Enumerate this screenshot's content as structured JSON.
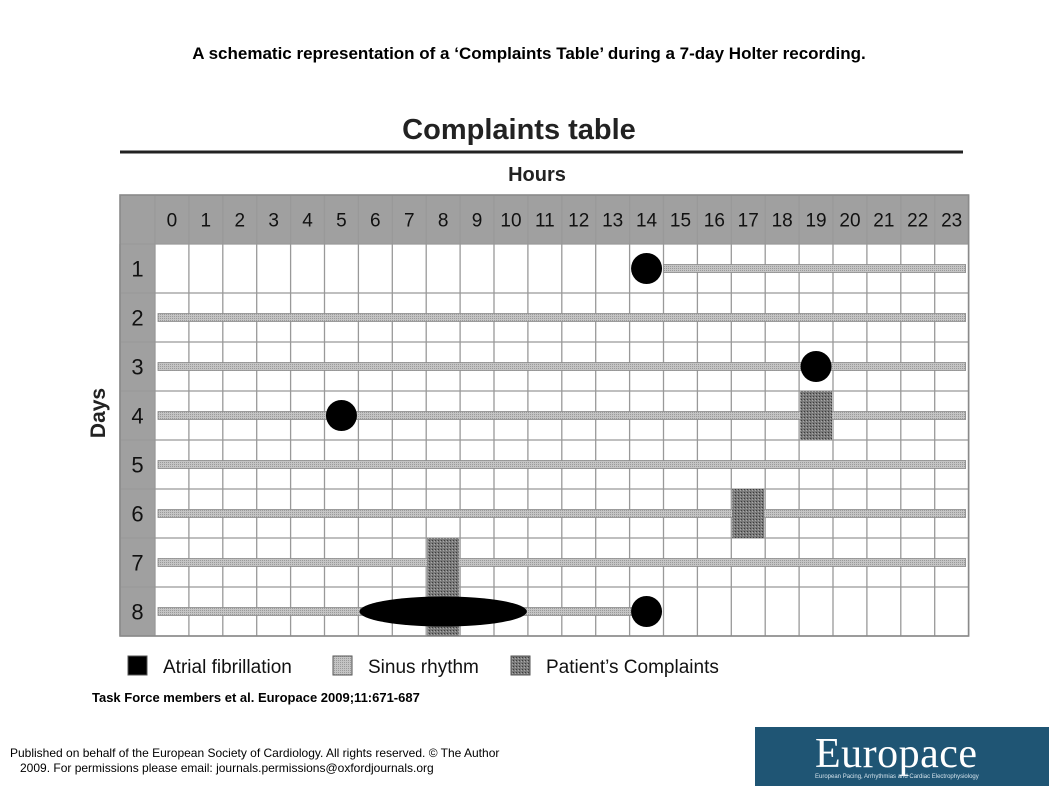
{
  "slide_title": "A schematic representation of a ‘Complaints Table’ during a 7-day Holter recording.",
  "figure": {
    "title": "Complaints table",
    "hours_label": "Hours",
    "days_label": "Days",
    "hours": [
      "0",
      "1",
      "2",
      "3",
      "4",
      "5",
      "6",
      "7",
      "8",
      "9",
      "10",
      "11",
      "12",
      "13",
      "14",
      "15",
      "16",
      "17",
      "18",
      "19",
      "20",
      "21",
      "22",
      "23"
    ],
    "days": [
      "1",
      "2",
      "3",
      "4",
      "5",
      "6",
      "7",
      "8"
    ],
    "legend": [
      {
        "key": "af",
        "label": "Atrial fibrillation"
      },
      {
        "key": "sinus",
        "label": "Sinus rhythm"
      },
      {
        "key": "complaint",
        "label": "Patient’s Complaints"
      }
    ],
    "sinus_rhythm": [
      {
        "day": 1,
        "start": 15,
        "end": 24
      },
      {
        "day": 2,
        "start": 0,
        "end": 24
      },
      {
        "day": 3,
        "start": 0,
        "end": 24
      },
      {
        "day": 4,
        "start": 0,
        "end": 24
      },
      {
        "day": 5,
        "start": 0,
        "end": 24
      },
      {
        "day": 6,
        "start": 0,
        "end": 24
      },
      {
        "day": 7,
        "start": 0,
        "end": 24
      },
      {
        "day": 8,
        "start": 0,
        "end": 14.5
      }
    ],
    "atrial_fibrillation": [
      {
        "day": 1,
        "hour": 14.5,
        "type": "dot"
      },
      {
        "day": 3,
        "hour": 19.5,
        "type": "dot"
      },
      {
        "day": 4,
        "hour": 5.5,
        "type": "dot"
      },
      {
        "day": 8,
        "hour": 14.5,
        "type": "dot"
      },
      {
        "day": 8,
        "start": 6,
        "end": 11,
        "type": "episode"
      }
    ],
    "complaints": [
      {
        "hour": 19,
        "day_start": 4,
        "day_end": 4
      },
      {
        "hour": 17,
        "day_start": 6,
        "day_end": 6
      },
      {
        "hour": 8,
        "day_start": 7,
        "day_end": 8
      }
    ],
    "colors": {
      "header": "#a0a0a0",
      "grid": "#999999",
      "sinus": "#bcbcbc",
      "complaint": "#6a6a6a",
      "af": "#000000"
    }
  },
  "citation": "Task Force members et al. Europace 2009;11:671-687",
  "footer": "Published on behalf of the European Society of Cardiology. All rights reserved. © The Author\n   2009. For permissions please email: journals.permissions@oxfordjournals.org",
  "logo": {
    "name": "Europace",
    "tagline": "European Pacing, Arrhythmias and Cardiac Electrophysiology"
  }
}
